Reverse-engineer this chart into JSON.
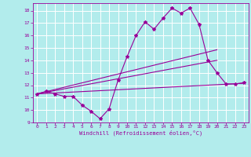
{
  "title": "",
  "xlabel": "Windchill (Refroidissement éolien,°C)",
  "ylabel": "",
  "background_color": "#b2ecec",
  "grid_color": "#ffffff",
  "line_color": "#990099",
  "xlim": [
    -0.5,
    23.5
  ],
  "ylim": [
    9,
    18.6
  ],
  "yticks": [
    9,
    10,
    11,
    12,
    13,
    14,
    15,
    16,
    17,
    18
  ],
  "xticks": [
    0,
    1,
    2,
    3,
    4,
    5,
    6,
    7,
    8,
    9,
    10,
    11,
    12,
    13,
    14,
    15,
    16,
    17,
    18,
    19,
    20,
    21,
    22,
    23
  ],
  "main_x": [
    0,
    1,
    2,
    3,
    4,
    5,
    6,
    7,
    8,
    9,
    10,
    11,
    12,
    13,
    14,
    15,
    16,
    17,
    18,
    19,
    20,
    21,
    22,
    23
  ],
  "main_y": [
    11.3,
    11.5,
    11.3,
    11.1,
    11.1,
    10.4,
    9.9,
    9.3,
    10.1,
    12.4,
    14.3,
    16.0,
    17.1,
    16.5,
    17.4,
    18.2,
    17.8,
    18.2,
    16.9,
    14.0,
    13.0,
    12.1,
    12.1,
    12.2
  ],
  "line2_x": [
    0,
    23
  ],
  "line2_y": [
    11.3,
    12.15
  ],
  "line3_x": [
    0,
    20
  ],
  "line3_y": [
    11.3,
    14.0
  ],
  "line4_x": [
    0,
    20
  ],
  "line4_y": [
    11.3,
    14.85
  ]
}
